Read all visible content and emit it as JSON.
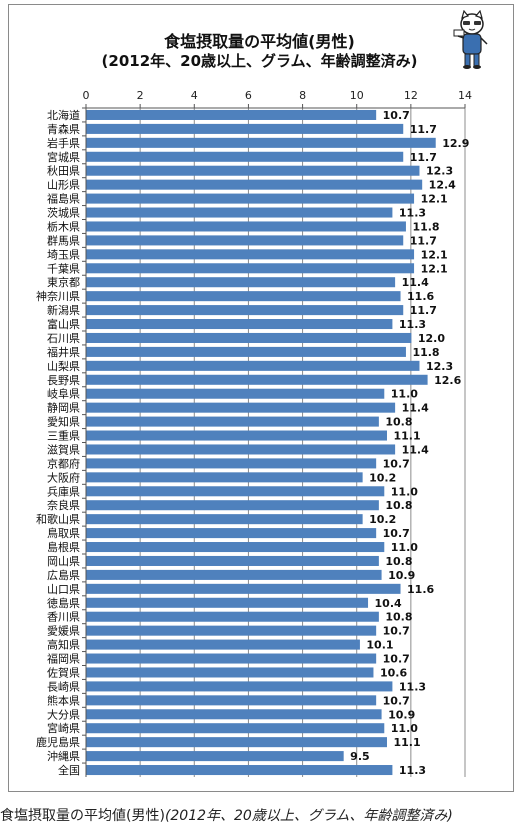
{
  "chart_data": {
    "type": "bar",
    "orientation": "horizontal",
    "title": "食塩摂取量の平均値(男性)",
    "subtitle": "(2012年、20歳以上、グラム、年齢調整済み)",
    "x_ticks": [
      0,
      2,
      4,
      6,
      8,
      10,
      12,
      14
    ],
    "xlim": [
      0,
      14
    ],
    "grid": true,
    "bar_color": "#4f81bd",
    "categories": [
      "北海道",
      "青森県",
      "岩手県",
      "宮城県",
      "秋田県",
      "山形県",
      "福島県",
      "茨城県",
      "栃木県",
      "群馬県",
      "埼玉県",
      "千葉県",
      "東京都",
      "神奈川県",
      "新潟県",
      "富山県",
      "石川県",
      "福井県",
      "山梨県",
      "長野県",
      "岐阜県",
      "静岡県",
      "愛知県",
      "三重県",
      "滋賀県",
      "京都府",
      "大阪府",
      "兵庫県",
      "奈良県",
      "和歌山県",
      "鳥取県",
      "島根県",
      "岡山県",
      "広島県",
      "山口県",
      "徳島県",
      "香川県",
      "愛媛県",
      "高知県",
      "福岡県",
      "佐賀県",
      "長崎県",
      "熊本県",
      "大分県",
      "宮崎県",
      "鹿児島県",
      "沖縄県",
      "全国"
    ],
    "values": [
      10.7,
      11.7,
      12.9,
      11.7,
      12.3,
      12.4,
      12.1,
      11.3,
      11.8,
      11.7,
      12.1,
      12.1,
      11.4,
      11.6,
      11.7,
      11.3,
      12.0,
      11.8,
      12.3,
      12.6,
      11.0,
      11.4,
      10.8,
      11.1,
      11.4,
      10.7,
      10.2,
      11.0,
      10.8,
      10.2,
      10.7,
      11.0,
      10.8,
      10.9,
      11.6,
      10.4,
      10.8,
      10.7,
      10.1,
      10.7,
      10.6,
      11.3,
      10.7,
      10.9,
      11.0,
      11.1,
      9.5,
      11.3
    ]
  },
  "caption": {
    "main": "食塩摂取量の平均値(男性)",
    "paren": "(2012年、20歳以上、グラム、年齢調整済み)"
  },
  "mascot_icon": "cat-mascot-icon"
}
